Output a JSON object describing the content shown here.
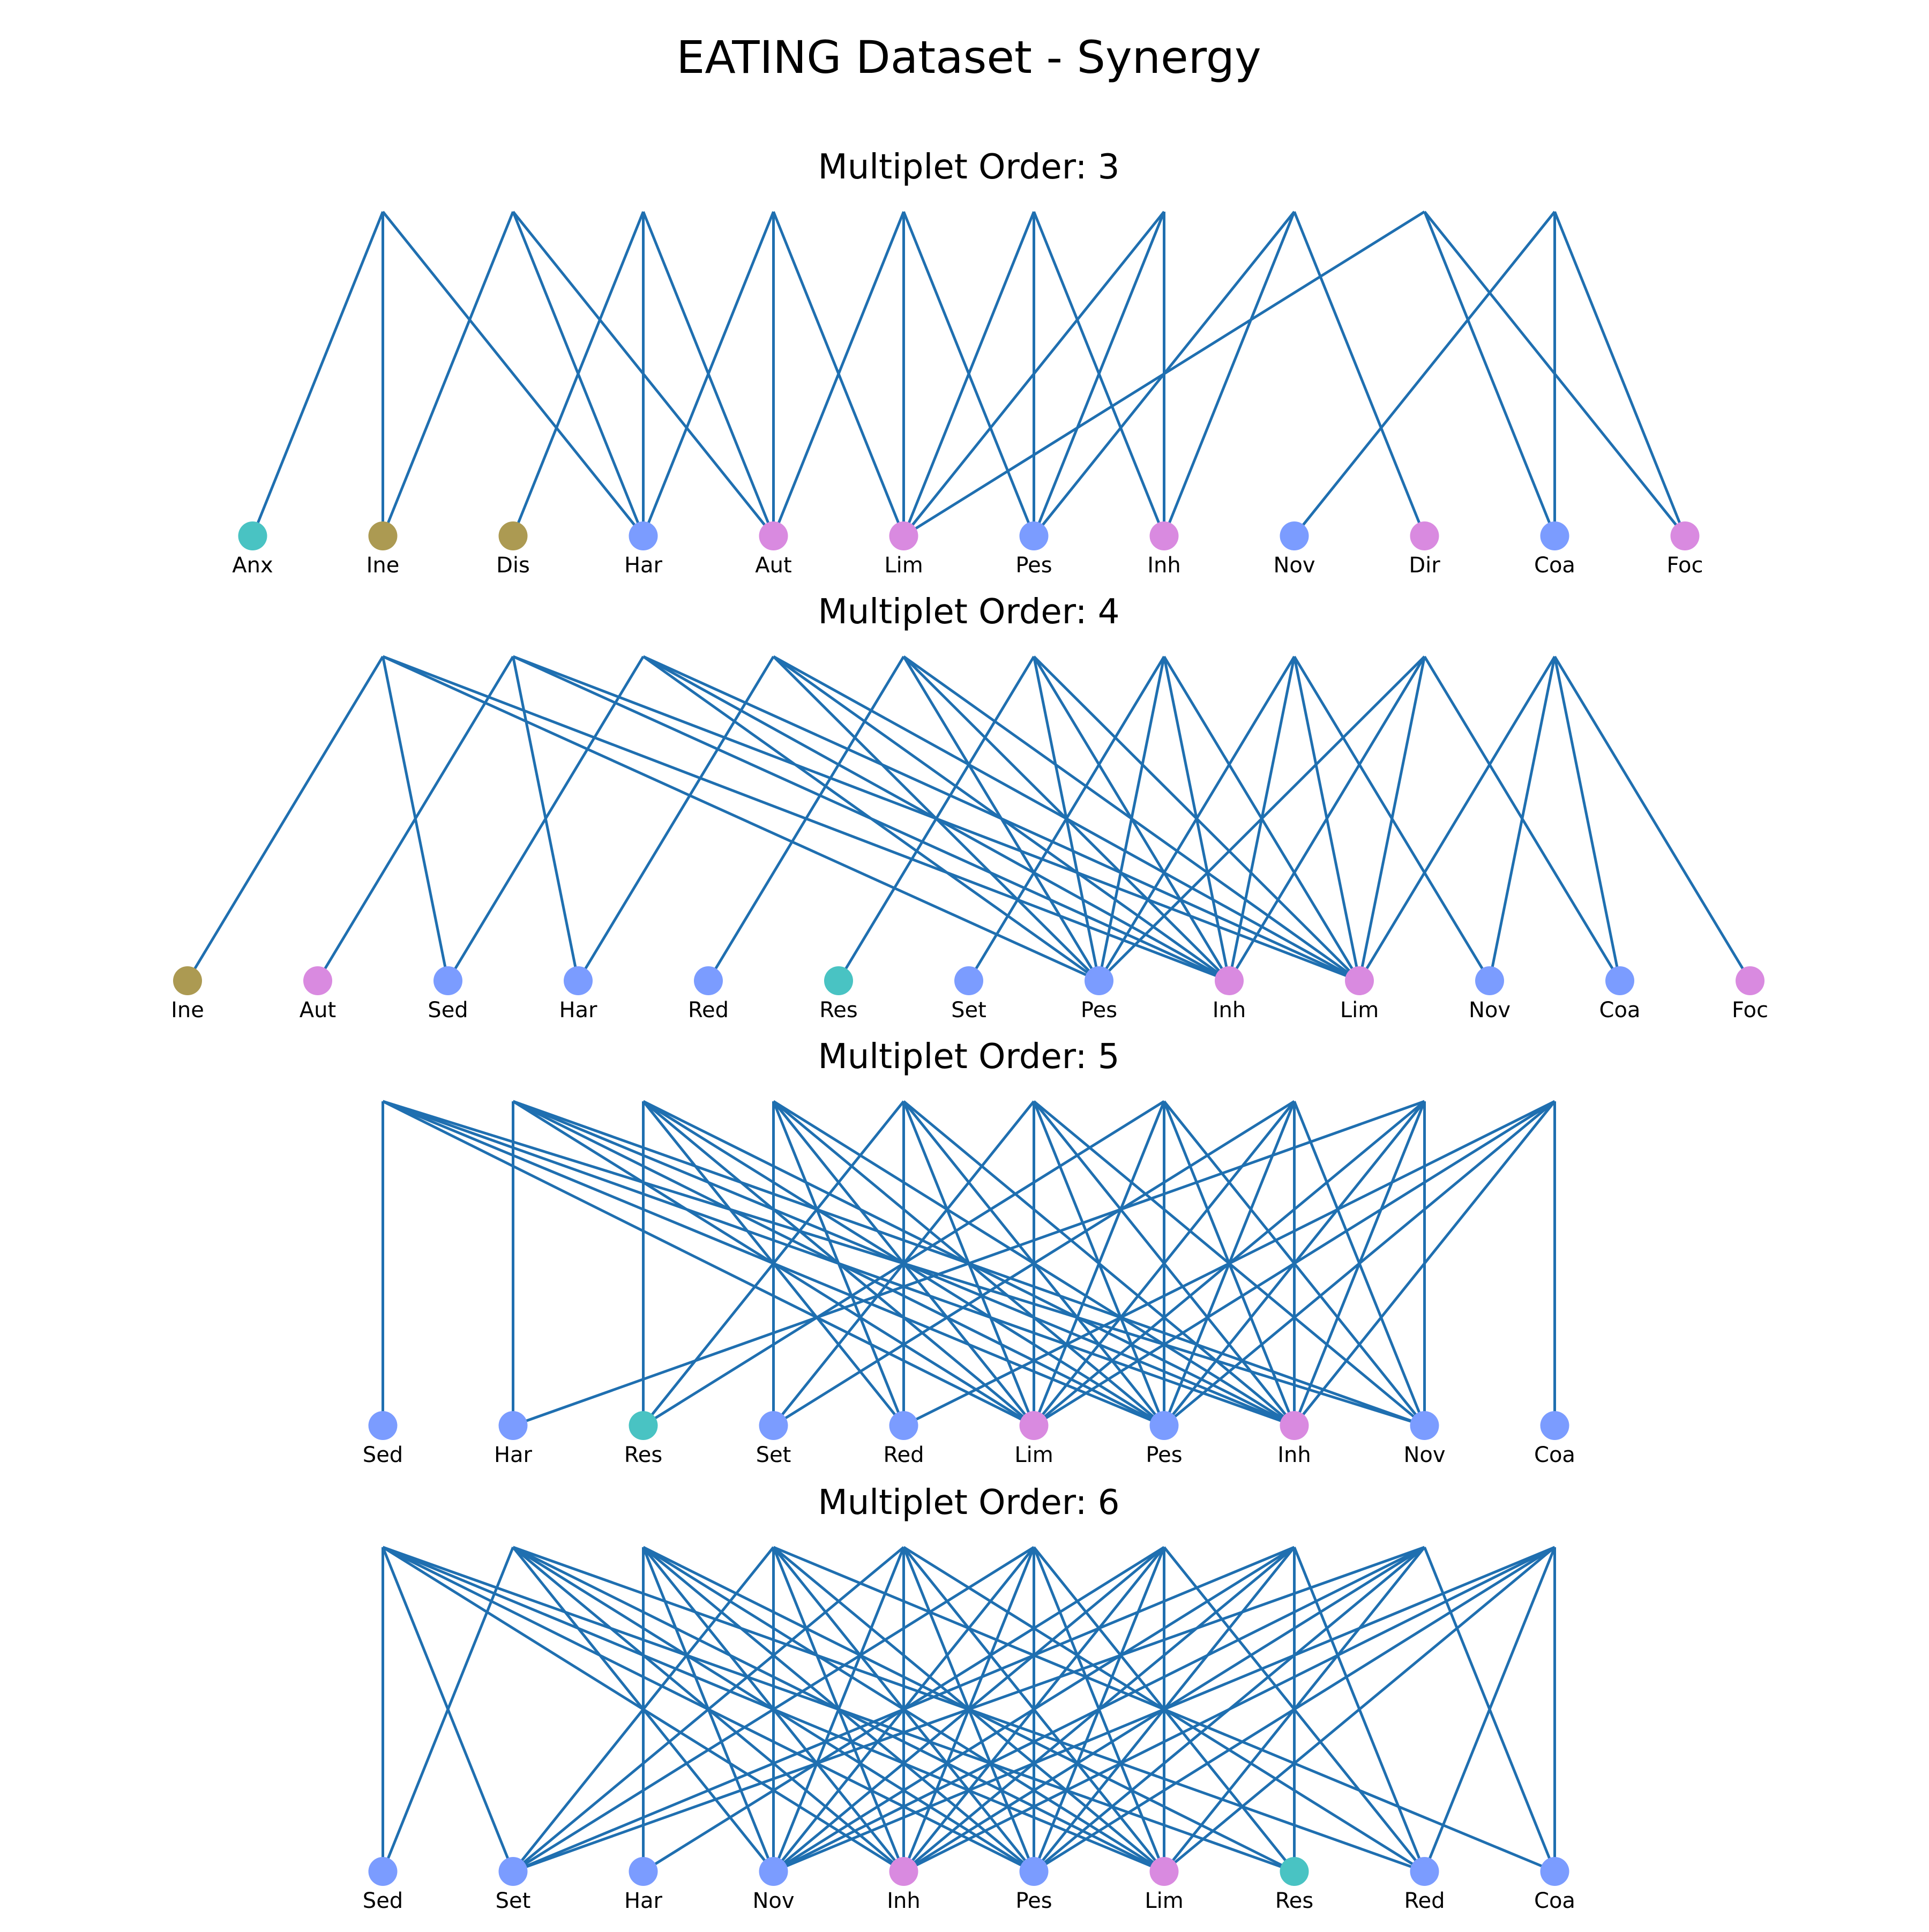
{
  "title": "EATING Dataset - Synergy",
  "colors": {
    "edge": "#1f6fb0",
    "blue": "#7b9cff",
    "pink": "#d98ae0",
    "teal": "#49c3c3",
    "olive": "#ac9a52"
  },
  "panels": [
    {
      "title": "Multiplet Order: 3",
      "hyperedges": 10,
      "nodes": [
        {
          "label": "Anx",
          "color": "teal"
        },
        {
          "label": "Ine",
          "color": "olive"
        },
        {
          "label": "Dis",
          "color": "olive"
        },
        {
          "label": "Har",
          "color": "blue"
        },
        {
          "label": "Aut",
          "color": "pink"
        },
        {
          "label": "Lim",
          "color": "pink"
        },
        {
          "label": "Pes",
          "color": "blue"
        },
        {
          "label": "Inh",
          "color": "pink"
        },
        {
          "label": "Nov",
          "color": "blue"
        },
        {
          "label": "Dir",
          "color": "pink"
        },
        {
          "label": "Coa",
          "color": "blue"
        },
        {
          "label": "Foc",
          "color": "pink"
        }
      ],
      "edges": [
        [
          0,
          0
        ],
        [
          0,
          1
        ],
        [
          0,
          3
        ],
        [
          1,
          1
        ],
        [
          1,
          3
        ],
        [
          1,
          4
        ],
        [
          2,
          2
        ],
        [
          2,
          3
        ],
        [
          2,
          4
        ],
        [
          3,
          3
        ],
        [
          3,
          4
        ],
        [
          3,
          5
        ],
        [
          4,
          4
        ],
        [
          4,
          5
        ],
        [
          4,
          6
        ],
        [
          5,
          5
        ],
        [
          5,
          6
        ],
        [
          5,
          7
        ],
        [
          6,
          5
        ],
        [
          6,
          6
        ],
        [
          6,
          7
        ],
        [
          7,
          6
        ],
        [
          7,
          7
        ],
        [
          7,
          9
        ],
        [
          8,
          5
        ],
        [
          8,
          10
        ],
        [
          8,
          11
        ],
        [
          9,
          8
        ],
        [
          9,
          10
        ],
        [
          9,
          11
        ]
      ]
    },
    {
      "title": "Multiplet Order: 4",
      "hyperedges": 10,
      "nodes": [
        {
          "label": "Ine",
          "color": "olive"
        },
        {
          "label": "Aut",
          "color": "pink"
        },
        {
          "label": "Sed",
          "color": "blue"
        },
        {
          "label": "Har",
          "color": "blue"
        },
        {
          "label": "Red",
          "color": "blue"
        },
        {
          "label": "Res",
          "color": "teal"
        },
        {
          "label": "Set",
          "color": "blue"
        },
        {
          "label": "Pes",
          "color": "blue"
        },
        {
          "label": "Inh",
          "color": "pink"
        },
        {
          "label": "Lim",
          "color": "pink"
        },
        {
          "label": "Nov",
          "color": "blue"
        },
        {
          "label": "Coa",
          "color": "blue"
        },
        {
          "label": "Foc",
          "color": "pink"
        }
      ],
      "edges": [
        [
          0,
          0
        ],
        [
          0,
          2
        ],
        [
          0,
          7
        ],
        [
          0,
          8
        ],
        [
          1,
          1
        ],
        [
          1,
          3
        ],
        [
          1,
          8
        ],
        [
          1,
          9
        ],
        [
          2,
          2
        ],
        [
          2,
          7
        ],
        [
          2,
          8
        ],
        [
          2,
          9
        ],
        [
          3,
          3
        ],
        [
          3,
          7
        ],
        [
          3,
          8
        ],
        [
          3,
          9
        ],
        [
          4,
          4
        ],
        [
          4,
          7
        ],
        [
          4,
          8
        ],
        [
          4,
          9
        ],
        [
          5,
          5
        ],
        [
          5,
          7
        ],
        [
          5,
          8
        ],
        [
          5,
          9
        ],
        [
          6,
          6
        ],
        [
          6,
          7
        ],
        [
          6,
          8
        ],
        [
          6,
          9
        ],
        [
          7,
          7
        ],
        [
          7,
          8
        ],
        [
          7,
          9
        ],
        [
          7,
          10
        ],
        [
          8,
          7
        ],
        [
          8,
          8
        ],
        [
          8,
          9
        ],
        [
          8,
          11
        ],
        [
          9,
          9
        ],
        [
          9,
          10
        ],
        [
          9,
          11
        ],
        [
          9,
          12
        ]
      ]
    },
    {
      "title": "Multiplet Order: 5",
      "hyperedges": 10,
      "nodes": [
        {
          "label": "Sed",
          "color": "blue"
        },
        {
          "label": "Har",
          "color": "blue"
        },
        {
          "label": "Res",
          "color": "teal"
        },
        {
          "label": "Set",
          "color": "blue"
        },
        {
          "label": "Red",
          "color": "blue"
        },
        {
          "label": "Lim",
          "color": "pink"
        },
        {
          "label": "Pes",
          "color": "blue"
        },
        {
          "label": "Inh",
          "color": "pink"
        },
        {
          "label": "Nov",
          "color": "blue"
        },
        {
          "label": "Coa",
          "color": "blue"
        }
      ],
      "edges": [
        [
          0,
          0
        ],
        [
          0,
          5
        ],
        [
          0,
          6
        ],
        [
          0,
          7
        ],
        [
          0,
          8
        ],
        [
          1,
          1
        ],
        [
          1,
          5
        ],
        [
          1,
          6
        ],
        [
          1,
          7
        ],
        [
          1,
          8
        ],
        [
          2,
          2
        ],
        [
          2,
          4
        ],
        [
          2,
          5
        ],
        [
          2,
          6
        ],
        [
          2,
          7
        ],
        [
          3,
          3
        ],
        [
          3,
          4
        ],
        [
          3,
          5
        ],
        [
          3,
          6
        ],
        [
          3,
          7
        ],
        [
          4,
          2
        ],
        [
          4,
          4
        ],
        [
          4,
          5
        ],
        [
          4,
          6
        ],
        [
          4,
          7
        ],
        [
          5,
          3
        ],
        [
          5,
          5
        ],
        [
          5,
          6
        ],
        [
          5,
          7
        ],
        [
          5,
          8
        ],
        [
          6,
          2
        ],
        [
          6,
          5
        ],
        [
          6,
          6
        ],
        [
          6,
          7
        ],
        [
          6,
          8
        ],
        [
          7,
          3
        ],
        [
          7,
          5
        ],
        [
          7,
          6
        ],
        [
          7,
          7
        ],
        [
          7,
          8
        ],
        [
          8,
          1
        ],
        [
          8,
          5
        ],
        [
          8,
          6
        ],
        [
          8,
          7
        ],
        [
          8,
          8
        ],
        [
          9,
          4
        ],
        [
          9,
          5
        ],
        [
          9,
          6
        ],
        [
          9,
          7
        ],
        [
          9,
          9
        ]
      ]
    },
    {
      "title": "Multiplet Order: 6",
      "hyperedges": 10,
      "nodes": [
        {
          "label": "Sed",
          "color": "blue"
        },
        {
          "label": "Set",
          "color": "blue"
        },
        {
          "label": "Har",
          "color": "blue"
        },
        {
          "label": "Nov",
          "color": "blue"
        },
        {
          "label": "Inh",
          "color": "pink"
        },
        {
          "label": "Pes",
          "color": "blue"
        },
        {
          "label": "Lim",
          "color": "pink"
        },
        {
          "label": "Res",
          "color": "teal"
        },
        {
          "label": "Red",
          "color": "blue"
        },
        {
          "label": "Coa",
          "color": "blue"
        }
      ],
      "edges": [
        [
          0,
          0
        ],
        [
          0,
          1
        ],
        [
          0,
          4
        ],
        [
          0,
          5
        ],
        [
          0,
          6
        ],
        [
          0,
          7
        ],
        [
          1,
          0
        ],
        [
          1,
          3
        ],
        [
          1,
          4
        ],
        [
          1,
          5
        ],
        [
          1,
          6
        ],
        [
          1,
          8
        ],
        [
          2,
          2
        ],
        [
          2,
          3
        ],
        [
          2,
          4
        ],
        [
          2,
          5
        ],
        [
          2,
          6
        ],
        [
          2,
          7
        ],
        [
          3,
          1
        ],
        [
          3,
          3
        ],
        [
          3,
          4
        ],
        [
          3,
          5
        ],
        [
          3,
          6
        ],
        [
          3,
          9
        ],
        [
          4,
          1
        ],
        [
          4,
          3
        ],
        [
          4,
          4
        ],
        [
          4,
          5
        ],
        [
          4,
          6
        ],
        [
          4,
          8
        ],
        [
          5,
          1
        ],
        [
          5,
          3
        ],
        [
          5,
          4
        ],
        [
          5,
          5
        ],
        [
          5,
          6
        ],
        [
          5,
          7
        ],
        [
          6,
          2
        ],
        [
          6,
          3
        ],
        [
          6,
          4
        ],
        [
          6,
          5
        ],
        [
          6,
          6
        ],
        [
          6,
          8
        ],
        [
          7,
          1
        ],
        [
          7,
          3
        ],
        [
          7,
          4
        ],
        [
          7,
          5
        ],
        [
          7,
          7
        ],
        [
          7,
          8
        ],
        [
          8,
          1
        ],
        [
          8,
          3
        ],
        [
          8,
          4
        ],
        [
          8,
          5
        ],
        [
          8,
          6
        ],
        [
          8,
          9
        ],
        [
          9,
          3
        ],
        [
          9,
          4
        ],
        [
          9,
          5
        ],
        [
          9,
          6
        ],
        [
          9,
          8
        ],
        [
          9,
          9
        ]
      ]
    }
  ]
}
